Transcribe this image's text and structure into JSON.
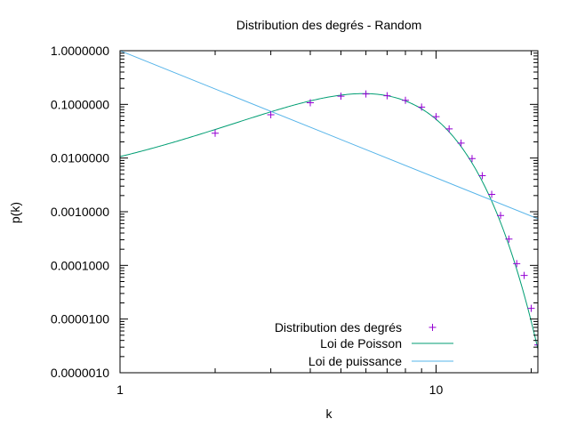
{
  "chart_data": {
    "type": "line",
    "title": "Distribution des degrés - Random",
    "xlabel": "k",
    "ylabel": "p(k)",
    "x_scale": "log",
    "y_scale": "log",
    "xlim": [
      1,
      21
    ],
    "ylim": [
      1e-06,
      1
    ],
    "x_ticks": [
      {
        "value": 1,
        "label": "1"
      },
      {
        "value": 10,
        "label": "10"
      }
    ],
    "y_ticks": [
      {
        "value": 1,
        "label": "1.0000000"
      },
      {
        "value": 0.1,
        "label": "0.1000000"
      },
      {
        "value": 0.01,
        "label": "0.0100000"
      },
      {
        "value": 0.001,
        "label": "0.0010000"
      },
      {
        "value": 0.0001,
        "label": "0.0001000"
      },
      {
        "value": 1e-05,
        "label": "0.0000100"
      },
      {
        "value": 1e-06,
        "label": "0.0000010"
      }
    ],
    "grid": false,
    "legend_position": "bottom-right",
    "series": [
      {
        "name": "Distribution des degrés",
        "style": "points",
        "marker": "plus",
        "color": "#9400d3",
        "x": [
          2,
          3,
          4,
          5,
          6,
          7,
          8,
          9,
          10,
          11,
          12,
          13,
          14,
          15,
          16,
          17,
          18,
          19,
          20,
          21
        ],
        "y": [
          0.029,
          0.064,
          0.107,
          0.142,
          0.156,
          0.145,
          0.119,
          0.089,
          0.059,
          0.035,
          0.019,
          0.0098,
          0.0047,
          0.0021,
          0.00085,
          0.00031,
          0.000108,
          6.5e-05,
          1.58e-05,
          3.3e-06
        ]
      },
      {
        "name": "Loi de Poisson",
        "style": "line",
        "color": "#009e73",
        "lambda": 6.4
      },
      {
        "name": "Loi de puissance",
        "style": "line",
        "color": "#56b4e9",
        "x": [
          1,
          21
        ],
        "y": [
          1,
          0.00074
        ]
      }
    ]
  }
}
